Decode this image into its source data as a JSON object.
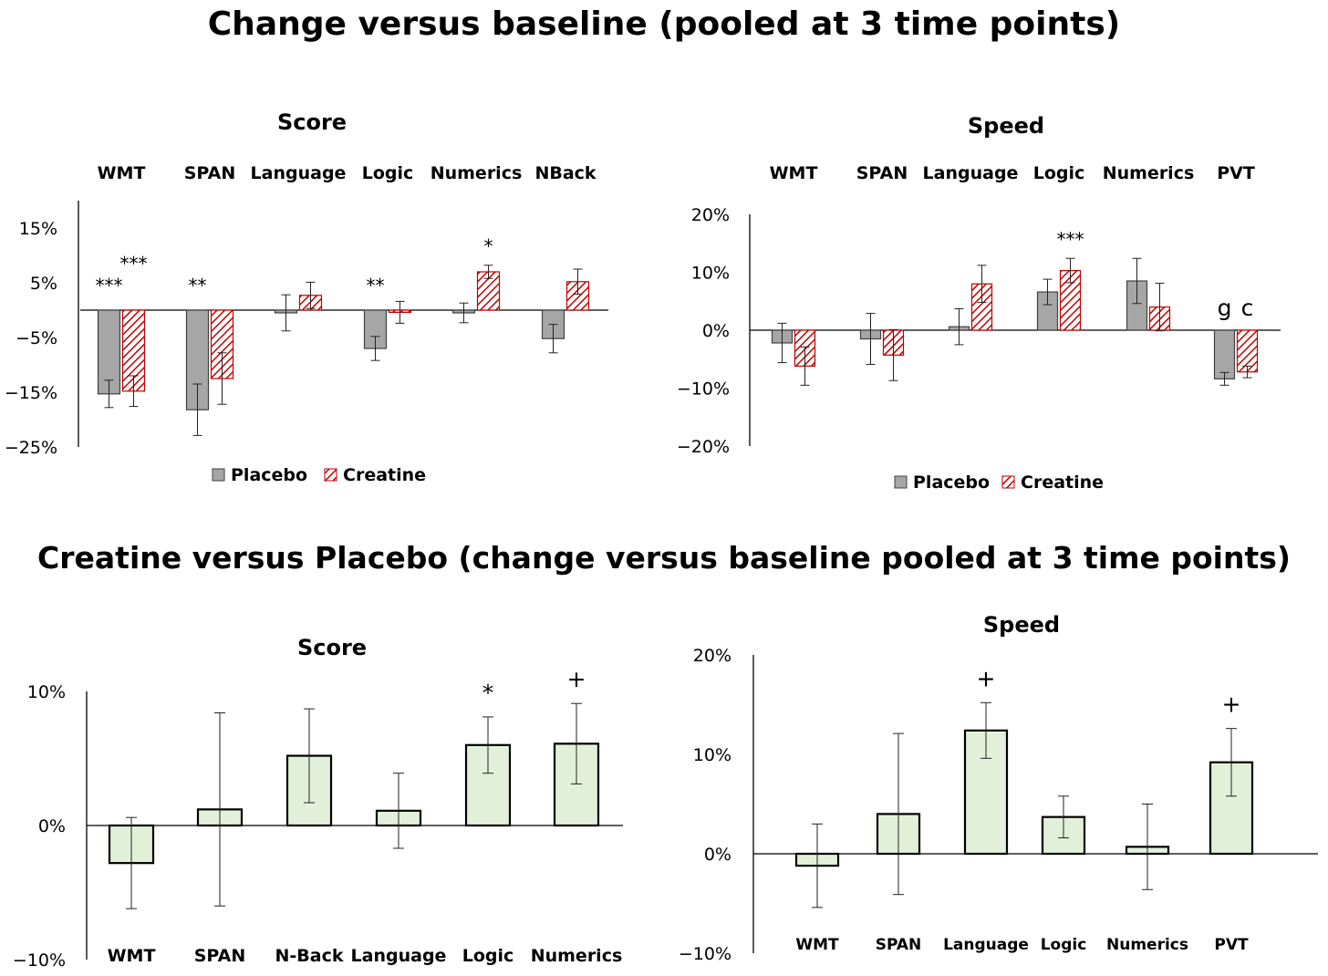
{
  "titles": {
    "top": "Change versus baseline (pooled at 3 time points)",
    "bottom": "Creatine versus Placebo (change versus baseline pooled at 3 time points)"
  },
  "colors": {
    "placebo": "#a6a6a6",
    "creatine_stripe": "#c00000",
    "difference_fill": "#e2f0d9",
    "axis": "#000000"
  },
  "chart_data": [
    {
      "type": "bar",
      "title": "Score",
      "categories": [
        "WMT",
        "SPAN",
        "Language",
        "Logic",
        "Numerics",
        "NBack"
      ],
      "ylim": [
        -25,
        20
      ],
      "yticks": [
        15,
        5,
        -5,
        -15,
        -25
      ],
      "tick_unit": "%",
      "series": [
        {
          "name": "Placebo",
          "values": [
            -15.3,
            -18.2,
            -0.5,
            -7.0,
            -0.5,
            -5.2
          ],
          "err_low": [
            2.5,
            4.7,
            3.3,
            2.2,
            1.8,
            2.6
          ],
          "err_high": [
            2.5,
            4.7,
            3.3,
            2.2,
            1.8,
            2.6
          ],
          "annotations": [
            "***",
            "**",
            "",
            "**",
            "",
            ""
          ]
        },
        {
          "name": "Creatine",
          "values": [
            -14.8,
            -12.5,
            2.7,
            -0.4,
            7.0,
            5.2
          ],
          "err_low": [
            2.8,
            4.7,
            2.4,
            2.0,
            1.2,
            2.3
          ],
          "err_high": [
            2.8,
            4.7,
            2.4,
            2.0,
            1.2,
            2.3
          ],
          "annotations": [
            "***",
            "",
            "",
            "",
            "*",
            ""
          ]
        }
      ],
      "legend": [
        "Placebo",
        "Creatine"
      ],
      "legend_position": "bottom"
    },
    {
      "type": "bar",
      "title": "Speed",
      "categories": [
        "WMT",
        "SPAN",
        "Language",
        "Logic",
        "Numerics",
        "PVT"
      ],
      "ylim": [
        -20,
        20
      ],
      "yticks": [
        20,
        10,
        0,
        -10,
        -20
      ],
      "tick_unit": "%",
      "series": [
        {
          "name": "Placebo",
          "values": [
            -2.2,
            -1.5,
            0.6,
            6.6,
            8.5,
            -8.4
          ],
          "err_low": [
            3.4,
            4.4,
            3.1,
            2.2,
            3.9,
            1.1
          ],
          "err_high": [
            3.4,
            4.4,
            3.1,
            2.2,
            3.9,
            1.1
          ],
          "annotations": [
            "",
            "",
            "",
            "",
            "",
            "g"
          ]
        },
        {
          "name": "Creatine",
          "values": [
            -6.2,
            -4.3,
            8.0,
            10.3,
            4.0,
            -7.2
          ],
          "err_low": [
            3.3,
            4.4,
            3.2,
            2.1,
            4.1,
            1.0
          ],
          "err_high": [
            3.3,
            4.4,
            3.2,
            2.1,
            4.1,
            1.0
          ],
          "annotations": [
            "",
            "",
            "",
            "***",
            "",
            "c"
          ]
        }
      ],
      "legend": [
        "Placebo",
        "Creatine"
      ],
      "legend_position": "bottom"
    },
    {
      "type": "bar",
      "title": "Score",
      "categories": [
        "WMT",
        "SPAN",
        "N-Back",
        "Language",
        "Logic",
        "Numerics"
      ],
      "ylim": [
        -10,
        10
      ],
      "yticks": [
        10,
        0,
        -10
      ],
      "tick_unit": "%",
      "series": [
        {
          "name": "Creatine versus Placebo",
          "values": [
            -2.8,
            1.2,
            5.2,
            1.1,
            6.0,
            6.1
          ],
          "err_low": [
            3.4,
            7.2,
            3.5,
            2.8,
            2.1,
            3.0
          ],
          "err_high": [
            3.4,
            7.2,
            3.5,
            2.8,
            2.1,
            3.0
          ],
          "annotations": [
            "",
            "",
            "",
            "",
            "*",
            "+"
          ]
        }
      ]
    },
    {
      "type": "bar",
      "title": "Speed",
      "categories": [
        "WMT",
        "SPAN",
        "Language",
        "Logic",
        "Numerics",
        "PVT"
      ],
      "ylim": [
        -10,
        20
      ],
      "yticks": [
        20,
        10,
        0,
        -10
      ],
      "tick_unit": "%",
      "series": [
        {
          "name": "Creatine versus Placebo",
          "values": [
            -1.2,
            4.0,
            12.4,
            3.7,
            0.7,
            9.2
          ],
          "err_low": [
            4.2,
            8.1,
            2.8,
            2.1,
            4.3,
            3.4
          ],
          "err_high": [
            4.2,
            8.1,
            2.8,
            2.1,
            4.3,
            3.4
          ],
          "annotations": [
            "",
            "",
            "+",
            "",
            "",
            "+"
          ]
        }
      ]
    }
  ]
}
